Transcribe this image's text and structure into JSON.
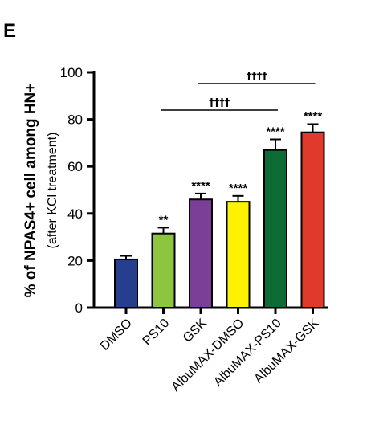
{
  "chart_data": {
    "type": "bar",
    "panel_label": "E",
    "ylabel": "% of NPAS4+ cell among HN+",
    "ylabel_sub": "(after KCl treatment)",
    "ylim": [
      0,
      100
    ],
    "yticks": [
      0,
      20,
      40,
      60,
      80,
      100
    ],
    "categories": [
      "DMSO",
      "PS10",
      "GSK",
      "AlbuMAX-DMSO",
      "AlbuMAX-PS10",
      "AlbuMAX-GSK"
    ],
    "values": [
      20.5,
      31.5,
      46,
      45,
      67,
      74.5
    ],
    "errors": [
      1.5,
      2.5,
      2.5,
      2.5,
      4.5,
      3.5
    ],
    "colors": [
      "#263e8e",
      "#8cc63f",
      "#7b3f98",
      "#fff200",
      "#0d6b35",
      "#e03a2c"
    ],
    "significance": [
      "",
      "**",
      "****",
      "****",
      "****",
      "****"
    ],
    "comparisons": [
      {
        "from": "PS10",
        "to": "AlbuMAX-PS10",
        "label": "††††"
      },
      {
        "from": "GSK",
        "to": "AlbuMAX-GSK",
        "label": "††††"
      }
    ]
  }
}
